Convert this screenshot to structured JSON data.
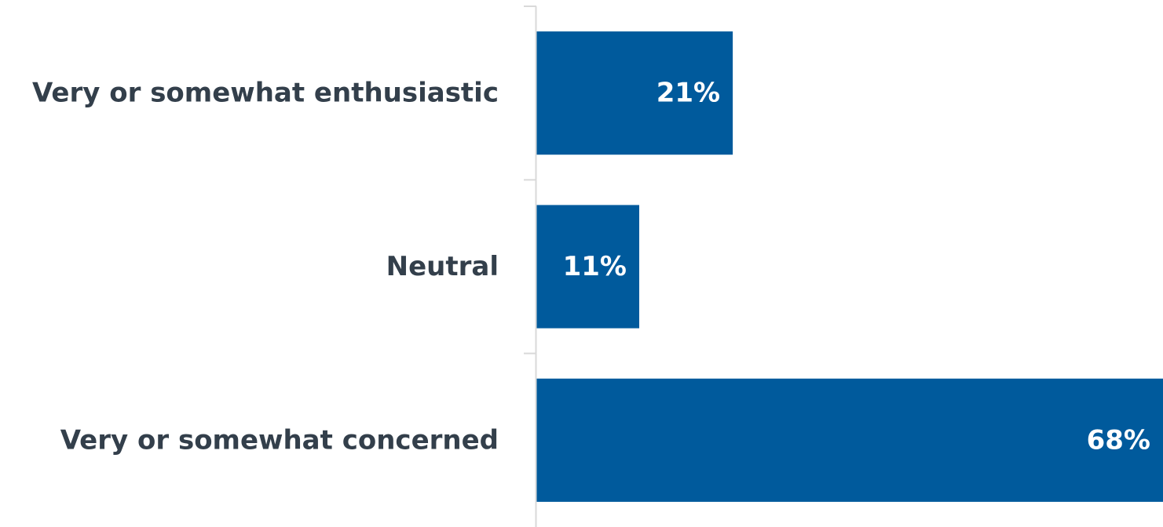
{
  "chart_data": {
    "type": "bar",
    "orientation": "horizontal",
    "categories": [
      "Very or somewhat enthusiastic",
      "Neutral",
      "Very or somewhat concerned"
    ],
    "values": [
      21,
      11,
      68
    ],
    "value_labels": [
      "21%",
      "11%",
      "68%"
    ],
    "title": "",
    "xlabel": "",
    "ylabel": "",
    "xlim": [
      0,
      67
    ],
    "grid": false,
    "legend": "none",
    "bar_color": "#005a9c",
    "label_color": "#ffffff",
    "category_label_color": "#333f4b"
  }
}
